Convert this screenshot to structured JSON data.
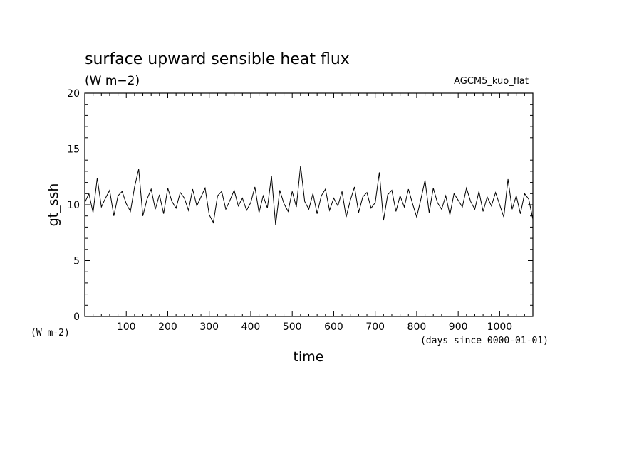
{
  "chart_data": {
    "type": "line",
    "title": "surface upward sensible heat flux",
    "subtitle": "(W m−2)",
    "experiment": "AGCM5_kuo_flat",
    "xlabel": "time",
    "xunits": "(days since 0000-01-01)",
    "ylabel": "gt_ssh",
    "yunits": "(W m-2)",
    "xlim": [
      0,
      1080
    ],
    "ylim": [
      0,
      20
    ],
    "xticks": [
      100,
      200,
      300,
      400,
      500,
      600,
      700,
      800,
      900,
      1000
    ],
    "yticks": [
      0,
      5,
      10,
      15,
      20
    ],
    "grid": false,
    "series": [
      {
        "x": [
          0,
          10,
          20,
          30,
          40,
          50,
          60,
          70,
          80,
          90,
          100,
          110,
          120,
          130,
          140,
          150,
          160,
          170,
          180,
          190,
          200,
          210,
          220,
          230,
          240,
          250,
          260,
          270,
          280,
          290,
          300,
          310,
          320,
          330,
          340,
          350,
          360,
          370,
          380,
          390,
          400,
          410,
          420,
          430,
          440,
          450,
          460,
          470,
          480,
          490,
          500,
          510,
          520,
          530,
          540,
          550,
          560,
          570,
          580,
          590,
          600,
          610,
          620,
          630,
          640,
          650,
          660,
          670,
          680,
          690,
          700,
          710,
          720,
          730,
          740,
          750,
          760,
          770,
          780,
          790,
          800,
          810,
          820,
          830,
          840,
          850,
          860,
          870,
          880,
          890,
          900,
          910,
          920,
          930,
          940,
          950,
          960,
          970,
          980,
          990,
          1000,
          1010,
          1020,
          1030,
          1040,
          1050,
          1060,
          1070,
          1080
        ],
        "y": [
          10.2,
          11.0,
          9.3,
          12.4,
          9.8,
          10.6,
          11.3,
          9.0,
          10.8,
          11.2,
          10.1,
          9.4,
          11.6,
          13.2,
          9.0,
          10.5,
          11.4,
          9.6,
          10.9,
          9.2,
          11.5,
          10.3,
          9.7,
          11.1,
          10.6,
          9.5,
          11.4,
          9.9,
          10.7,
          11.5,
          9.1,
          8.4,
          10.8,
          11.2,
          9.6,
          10.4,
          11.3,
          9.9,
          10.6,
          9.5,
          10.2,
          11.6,
          9.3,
          10.8,
          9.7,
          12.6,
          8.2,
          11.3,
          10.1,
          9.4,
          11.2,
          9.8,
          13.5,
          10.3,
          9.6,
          11.0,
          9.2,
          10.8,
          11.4,
          9.5,
          10.6,
          9.9,
          11.2,
          8.9,
          10.4,
          11.6,
          9.3,
          10.7,
          11.1,
          9.7,
          10.2,
          12.9,
          8.6,
          10.9,
          11.3,
          9.4,
          10.8,
          9.8,
          11.4,
          10.1,
          8.9,
          10.5,
          12.2,
          9.3,
          11.5,
          10.2,
          9.6,
          10.8,
          9.1,
          11.0,
          10.4,
          9.8,
          11.5,
          10.3,
          9.6,
          11.2,
          9.4,
          10.7,
          9.9,
          11.1,
          10.0,
          8.9,
          12.3,
          9.6,
          10.8,
          9.2,
          11.0,
          10.5,
          8.7
        ]
      }
    ]
  }
}
